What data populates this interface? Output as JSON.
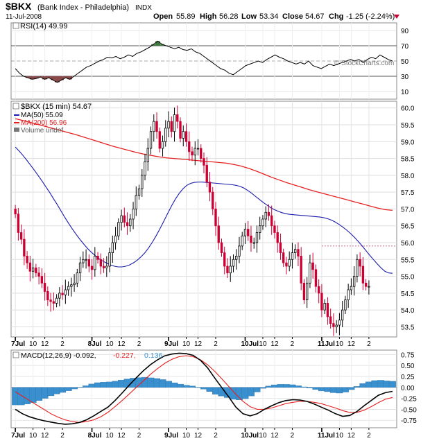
{
  "header": {
    "symbol": "$BKX",
    "name": "(Bank Index - Philadelphia)",
    "exchange": "INDX",
    "date": "11-Jul-2008",
    "open_label": "Open",
    "open": "55.89",
    "high_label": "High",
    "high": "56.28",
    "low_label": "Low",
    "low": "53.34",
    "close_label": "Close",
    "close": "54.67",
    "chg_label": "Chg",
    "chg": "-1.25 (-2.24%)",
    "watermark": "© StockCharts.com"
  },
  "rsi": {
    "label": "RSI(14) 49.99",
    "yticks": [
      90,
      70,
      50,
      30,
      10
    ],
    "ylim": [
      0,
      100
    ],
    "overbought": 70,
    "oversold": 30
  },
  "price": {
    "label_main": "$BKX (15 min) 54.67",
    "label_ma50": "MA(50) 55.09",
    "label_ma200": "MA(200) 56.96",
    "label_volume": "Volume undef",
    "yticks": [
      60.0,
      59.5,
      59.0,
      58.5,
      58.0,
      57.5,
      57.0,
      56.5,
      56.0,
      55.5,
      55.0,
      54.5,
      54.0,
      53.5
    ],
    "ytick_labels": [
      "60.0",
      "59.5",
      "59.0",
      "58.5",
      "58.0",
      "57.5",
      "57.0",
      "56.5",
      "56.0",
      "55.5",
      "55.0",
      "54.5",
      "54.0",
      "53.5"
    ],
    "ylim": [
      53.2,
      60.2
    ],
    "prior_high_line": 55.9
  },
  "macd": {
    "label_main": "MACD(12,26,9) -0.092,",
    "label_signal": "-0.227,",
    "label_hist": "0.136",
    "yticks": [
      0.75,
      0.5,
      0.25,
      0.0,
      -0.25,
      -0.5,
      -0.75
    ],
    "ytick_labels": [
      "0.75",
      "0.50",
      "0.25",
      "0.00",
      "-0.25",
      "-0.50",
      "-0.75"
    ],
    "ylim": [
      -0.92,
      0.85
    ]
  },
  "xaxis": {
    "labels": [
      "7Jul",
      "10",
      "12",
      "2",
      "8Jul",
      "10",
      "12",
      "2",
      "9Jul",
      "10",
      "12",
      "2",
      "10Jul",
      "10",
      "12",
      "2",
      "11Jul",
      "10",
      "12",
      "2"
    ],
    "ticks": [
      0,
      6,
      10,
      16,
      26,
      32,
      36,
      42,
      52,
      58,
      62,
      68,
      78,
      84,
      88,
      94,
      104,
      110,
      114,
      120
    ]
  },
  "colors": {
    "up": "#000000",
    "down": "#cc0033",
    "ma50": "#1a1aaa",
    "ma200": "#e62020",
    "macd": "#000000",
    "signal": "#e62020",
    "hist": "#3a8fcf",
    "rsi_ob": "#3e7a3e",
    "rsi_os": "#8a4a4a",
    "chg": "#cc0033"
  },
  "chart_data": {
    "type": "line",
    "x_unit": "15-min bars",
    "close": [
      56.85,
      56.3,
      56.1,
      55.6,
      55.4,
      55.15,
      55.25,
      55.1,
      55.0,
      54.8,
      54.55,
      54.3,
      54.25,
      54.2,
      54.35,
      54.5,
      54.45,
      54.6,
      54.7,
      54.75,
      54.8,
      55.1,
      55.4,
      55.5,
      55.5,
      55.3,
      55.2,
      55.6,
      55.5,
      55.3,
      55.25,
      55.3,
      55.7,
      56.0,
      56.2,
      56.6,
      56.8,
      56.6,
      56.5,
      56.7,
      57.0,
      57.4,
      57.6,
      58.0,
      58.4,
      58.8,
      59.3,
      59.6,
      59.3,
      58.8,
      59.0,
      59.4,
      59.6,
      59.3,
      59.8,
      59.6,
      59.1,
      59.3,
      59.0,
      58.7,
      58.6,
      58.8,
      58.8,
      58.5,
      58.3,
      57.8,
      57.5,
      57.0,
      56.5,
      56.0,
      55.7,
      55.3,
      55.1,
      55.3,
      55.5,
      55.6,
      55.9,
      56.2,
      56.4,
      56.2,
      56.0,
      56.0,
      56.3,
      56.5,
      56.7,
      56.9,
      56.8,
      56.5,
      56.3,
      56.0,
      55.7,
      55.4,
      55.3,
      55.5,
      55.7,
      55.8,
      55.6,
      54.8,
      54.3,
      54.8,
      55.4,
      55.2,
      54.7,
      54.5,
      54.0,
      54.2,
      53.8,
      53.6,
      53.5,
      53.55,
      53.7,
      54.0,
      54.3,
      54.6,
      54.7,
      55.0,
      55.5,
      55.3,
      54.8,
      54.7,
      54.7
    ],
    "volume": "undef",
    "series": [
      {
        "name": "MA(50)",
        "values": [
          58.84,
          58.72,
          58.59,
          58.45,
          58.3,
          58.15,
          57.99,
          57.83,
          57.66,
          57.49,
          57.31,
          57.13,
          56.94,
          56.75,
          56.57,
          56.4,
          56.24,
          56.09,
          55.95,
          55.82,
          55.71,
          55.61,
          55.52,
          55.45,
          55.39,
          55.34,
          55.3,
          55.28,
          55.28,
          55.3,
          55.34,
          55.4,
          55.48,
          55.58,
          55.7,
          55.85,
          56.02,
          56.21,
          56.42,
          56.64,
          56.87,
          57.09,
          57.29,
          57.46,
          57.6,
          57.7,
          57.76,
          57.79,
          57.8,
          57.8,
          57.79,
          57.78,
          57.77,
          57.76,
          57.75,
          57.74,
          57.73,
          57.72,
          57.7,
          57.67,
          57.62,
          57.55,
          57.47,
          57.38,
          57.29,
          57.2,
          57.12,
          57.04,
          56.98,
          56.93,
          56.89,
          56.86,
          56.84,
          56.83,
          56.82,
          56.81,
          56.8,
          56.79,
          56.78,
          56.77,
          56.76,
          56.74,
          56.71,
          56.67,
          56.61,
          56.54,
          56.46,
          56.37,
          56.27,
          56.16,
          56.04,
          55.91,
          55.77,
          55.63,
          55.5,
          55.37,
          55.25,
          55.15,
          55.1,
          55.09
        ]
      },
      {
        "name": "MA(200)",
        "values": [
          59.68,
          59.63,
          59.57,
          59.51,
          59.45,
          59.39,
          59.33,
          59.27,
          59.21,
          59.14,
          59.07,
          59.0,
          58.93,
          58.86,
          58.8,
          58.74,
          58.68,
          58.63,
          58.59,
          58.55,
          58.52,
          58.5,
          58.48,
          58.46,
          58.44,
          58.42,
          58.4,
          58.38,
          58.36,
          58.32,
          58.27,
          58.2,
          58.12,
          58.03,
          57.94,
          57.86,
          57.78,
          57.71,
          57.64,
          57.57,
          57.51,
          57.45,
          57.39,
          57.33,
          57.27,
          57.21,
          57.15,
          57.09,
          57.03,
          56.98,
          56.96
        ]
      },
      {
        "name": "MACD",
        "values": [
          -0.5,
          -0.6,
          -0.67,
          -0.72,
          -0.76,
          -0.79,
          -0.82,
          -0.84,
          -0.83,
          -0.8,
          -0.74,
          -0.65,
          -0.55,
          -0.45,
          -0.3,
          -0.13,
          0.05,
          0.22,
          0.38,
          0.52,
          0.63,
          0.72,
          0.76,
          0.78,
          0.77,
          0.73,
          0.62,
          0.45,
          0.22,
          0.0,
          -0.22,
          -0.45,
          -0.6,
          -0.65,
          -0.6,
          -0.5,
          -0.42,
          -0.35,
          -0.3,
          -0.28,
          -0.29,
          -0.32,
          -0.38,
          -0.45,
          -0.52,
          -0.6,
          -0.66,
          -0.64,
          -0.55,
          -0.42,
          -0.3,
          -0.18,
          -0.12,
          -0.09
        ]
      },
      {
        "name": "Signal",
        "values": [
          -0.1,
          -0.2,
          -0.3,
          -0.4,
          -0.5,
          -0.6,
          -0.68,
          -0.74,
          -0.78,
          -0.8,
          -0.78,
          -0.74,
          -0.67,
          -0.57,
          -0.44,
          -0.3,
          -0.15,
          0.0,
          0.15,
          0.3,
          0.43,
          0.55,
          0.64,
          0.7,
          0.72,
          0.7,
          0.63,
          0.52,
          0.37,
          0.2,
          0.02,
          -0.16,
          -0.32,
          -0.44,
          -0.5,
          -0.5,
          -0.47,
          -0.42,
          -0.37,
          -0.34,
          -0.32,
          -0.32,
          -0.34,
          -0.37,
          -0.42,
          -0.47,
          -0.53,
          -0.57,
          -0.57,
          -0.52,
          -0.44,
          -0.35,
          -0.27,
          -0.23
        ]
      },
      {
        "name": "RSI(14)",
        "values": [
          40,
          34,
          30,
          28,
          26,
          27,
          29,
          26,
          28,
          25,
          22,
          25,
          28,
          26,
          30,
          34,
          38,
          42,
          44,
          47,
          50,
          52,
          55,
          54,
          56,
          53,
          55,
          58,
          56,
          60,
          62,
          65,
          68,
          72,
          76,
          72,
          70,
          68,
          66,
          68,
          65,
          64,
          66,
          62,
          60,
          56,
          52,
          48,
          44,
          40,
          38,
          34,
          32,
          36,
          40,
          44,
          46,
          48,
          50,
          48,
          52,
          55,
          58,
          55,
          53,
          50,
          48,
          46,
          48,
          46,
          50,
          44,
          42,
          40,
          43,
          46,
          44,
          46,
          48,
          50,
          52,
          50,
          52,
          48,
          52,
          55,
          53,
          58,
          55,
          52,
          50
        ]
      }
    ],
    "xlabel": "",
    "ylabel": ""
  }
}
